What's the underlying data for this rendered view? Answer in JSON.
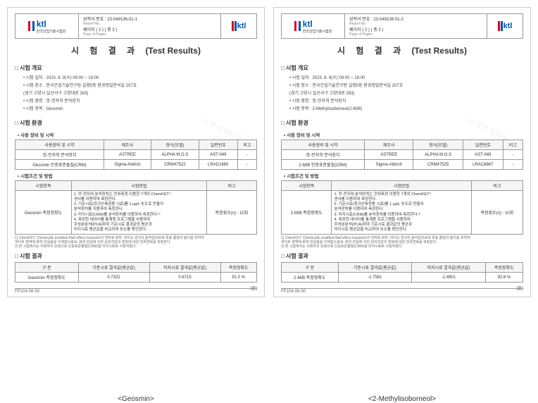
{
  "docs": [
    {
      "caption": "<Geosmin>",
      "ktl_label": "ktl",
      "ktl_kr": "한국산업기술시험원",
      "ktl_en": "Korea Testing Laboratory",
      "report_no_label": "성적서 번호 : 23-049136-01-1",
      "report_no_sub": "Report No.",
      "page_label": "페이지 ( 2 ) ( 총 2 )",
      "page_sub": "Page of Pages",
      "title_kr": "시 험 결 과",
      "title_en": "(Test Results)",
      "sec_overview": "□ 시험 개요",
      "items": [
        "• 시험 일자 : 2023. 8. 9(수) 09:00 ~ 18:00",
        "• 시험 장소 : 한국건설기술연구원 실험5동 환경정밀분석실 207호",
        "  (경기 고양시 일산서구 고양대로 283)",
        "• 시험 품명 : 맛-전자혀 분석장치",
        "• 시험 항목 : Geosmin"
      ],
      "sec_env": "□ 시험 환경",
      "sub_equip": "• 사용 장비 및 시약",
      "equip_headers": [
        "사용장비 및 시약",
        "제조사",
        "형식(모델)",
        "일련번호",
        "비고"
      ],
      "equip_rows": [
        [
          "맛-전자혀 분석장치",
          "ASTREE",
          "ALPHA M.O.S",
          "AST-049",
          "-"
        ],
        [
          "Geosmin\n인증표준물질(CRM)",
          "Sigma-Aldrich",
          "CRM47522",
          "LRAD1665",
          "-"
        ]
      ],
      "sub_method": "• 시험조건 및 방법",
      "method_headers": [
        "시험항목",
        "시험방법",
        "비고"
      ],
      "method_item": "Geosmin\n측정정확도",
      "method_lines": [
        "1. 맛-전자혀 분석장치는 전위측정 이용한 7개의 ChemFET¹⁾",
        "   센서를 이용하여 측정한다.",
        "2. 기준시료(정크산측정용 시료)를 1 μg/L 농도로 만들어",
        "   분석장치를 이용하여 측정한다.",
        "3. 미지시료(CRM)를 분석장치를 이용하여 측정한다.²⁾",
        "4. 측정한 데이터를 통계용 프로그램을 사용하여",
        "   주성분분석(PCA)하여 기준시료 결과값의 평균과",
        "   미지시료 평균값을 비교하여 농도를 확인한다."
      ],
      "method_note": "측정횟수(n) : 10회",
      "footnotes": [
        "1) ChemFET: Chemically modified filed effect transistor의 약자로 화학, 바이오 센서의 동작원리로써 목표 물질의 탐지를 위하여",
        "  게이트 영역에 화학 반응층을 이재함으로써, 화학 반응에 의한 문턱전압의 변화에 대한 전류변화를 측정한다.",
        "2) 본 시험에서는 의뢰자의 요청으로 인증표준물질(CRM)을 미지시료로 사용하였다."
      ],
      "sec_result": "□ 시험 결과",
      "result_headers": [
        "구 분",
        "기준시료 결과값(평균값)",
        "미지시료 결과값(평균값)",
        "측정정확도"
      ],
      "result_row": [
        "Geosmin\n측정정확도",
        "0.7322",
        "0.6715",
        "91.0 %"
      ],
      "end": "(끝)",
      "footer": "FP104-06-00"
    },
    {
      "caption": "<2-Methylisoborneol>",
      "ktl_label": "ktl",
      "ktl_kr": "한국산업기술시험원",
      "ktl_en": "Korea Testing Laboratory",
      "report_no_label": "성적서 번호 : 23-049136-01-2",
      "report_no_sub": "Report No.",
      "page_label": "페이지 ( 2 ) ( 총 2 )",
      "page_sub": "Page of Pages",
      "title_kr": "시 험 결 과",
      "title_en": "(Test Results)",
      "sec_overview": "□ 시험 개요",
      "items": [
        "• 시험 일자 : 2023. 8. 9(수) 09:00 ~ 18:00",
        "• 시험 장소 : 한국건설기술연구원 실험5동 환경정밀분석실 207호",
        "  (경기 고양시 일산서구 고양대로 283)",
        "• 시험 품명 : 맛-전자혀 분석장치",
        "• 시험 항목 : 2-Methylisoborneol(2-MIB)"
      ],
      "sec_env": "□ 시험 환경",
      "sub_equip": "• 사용 장비 및 시약",
      "equip_headers": [
        "사용장비 및 시약",
        "제조사",
        "형식(모델)",
        "일련번호",
        "비고"
      ],
      "equip_rows": [
        [
          "맛-전자혀 분석장치",
          "ASTREE",
          "ALPHA M.O.S",
          "AST-049",
          "-"
        ],
        [
          "2-MIB\n인증표준물질(CRM)",
          "Sigma-Aldrich",
          "CRM47525",
          "LRAC6867",
          "-"
        ]
      ],
      "sub_method": "• 시험조건 및 방법",
      "method_headers": [
        "시험항목",
        "시험방법",
        "비고"
      ],
      "method_item": "2-MIB\n측정정확도",
      "method_lines": [
        "1. 맛-전자혀 분석장치는 전위측정 이용한 7개의 ChemFET¹⁾",
        "   센서를 이용하여 측정한다.",
        "2. 기준시료(정크산측정용 시료)를 1 μg/L 농도로 만들어",
        "   분석장치를 이용하여 측정한다.",
        "3. 미지시료(CRM)를 분석장치를 이용하여 측정한다.²⁾",
        "4. 측정한 데이터를 통계용 프로그램을 사용하여",
        "   주성분분석(PCA)하여 기준시료 결과값의 평균과",
        "   미지시료 평균값을 비교하여 농도를 확인한다."
      ],
      "method_note": "측정횟수(n) : 10회",
      "footnotes": [
        "1) ChemFET: Chemically modified filed effect transistor의 약자로 화학, 바이오 센서의 동작원리로써 목표 물질의 탐지를 위하여",
        "  게이트 영역에 화학 반응층을 이재함으로써, 화학 반응에 의한 문턱전압의 변화에 대한 전류변화를 측정한다.",
        "2) 본 시험에서는 의뢰자의 요청으로 인증표준물질(CRM)을 미지시료로 사용하였다."
      ],
      "sec_result": "□ 시험 결과",
      "result_headers": [
        "구 분",
        "기준시료 결과값(평균값)",
        "미지시료 결과값(평균값)",
        "측정정확도"
      ],
      "result_row": [
        "2-MIB\n측정정확도",
        "-1.7581",
        "-1.4901",
        "92.8 %"
      ],
      "end": "(끝)",
      "footer": "FP104-06-00"
    }
  ],
  "watermark": "난 문서 입니다"
}
